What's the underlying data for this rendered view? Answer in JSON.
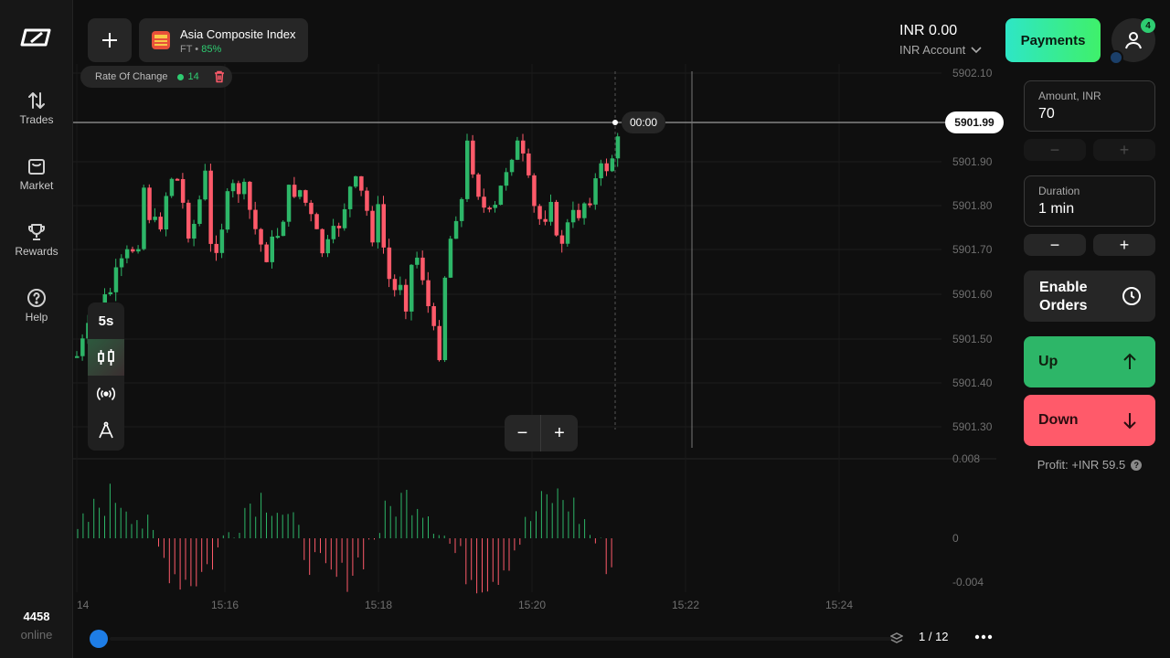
{
  "header": {
    "asset": {
      "name": "Asia Composite Index",
      "type": "FT",
      "payout": "85%",
      "separator": " • "
    },
    "balance": "INR 0.00",
    "account_label": "INR Account",
    "payments_label": "Payments",
    "notifications_count": "4"
  },
  "sidebar": {
    "items": [
      {
        "label": "Trades",
        "icon": "trades-arrows-icon"
      },
      {
        "label": "Market",
        "icon": "market-bag-icon"
      },
      {
        "label": "Rewards",
        "icon": "trophy-icon"
      },
      {
        "label": "Help",
        "icon": "help-question-icon"
      }
    ],
    "online_count": "4458",
    "online_label": "online"
  },
  "indicator": {
    "name": "Rate Of Change",
    "period": "14"
  },
  "chart_tools": {
    "timeframe": "5s",
    "icons": [
      "candlestick-icon",
      "signal-broadcast-icon",
      "drawing-compass-icon"
    ]
  },
  "zoom": {
    "minus": "−",
    "plus": "+"
  },
  "chart": {
    "current_price": "5901.99",
    "timer": "00:00",
    "y_ticks": [
      "5902.10",
      "5901.90",
      "5901.80",
      "5901.70",
      "5901.60",
      "5901.50",
      "5901.40",
      "5901.30"
    ],
    "osc_ticks": [
      "0.008",
      "0",
      "-0.004"
    ],
    "x_ticks": [
      "14",
      "15:16",
      "15:18",
      "15:20",
      "15:22",
      "15:24"
    ],
    "colors": {
      "up": "#2db668",
      "down": "#ff5a6a"
    }
  },
  "pagination": {
    "label": "1 / 12"
  },
  "trade_panel": {
    "amount_label": "Amount, INR",
    "amount_value": "70",
    "duration_label": "Duration",
    "duration_value": "1 min",
    "enable_orders_label": "Enable Orders",
    "up_label": "Up",
    "down_label": "Down",
    "profit_label": "Profit: +INR 59.5",
    "minus": "−",
    "plus": "+"
  }
}
